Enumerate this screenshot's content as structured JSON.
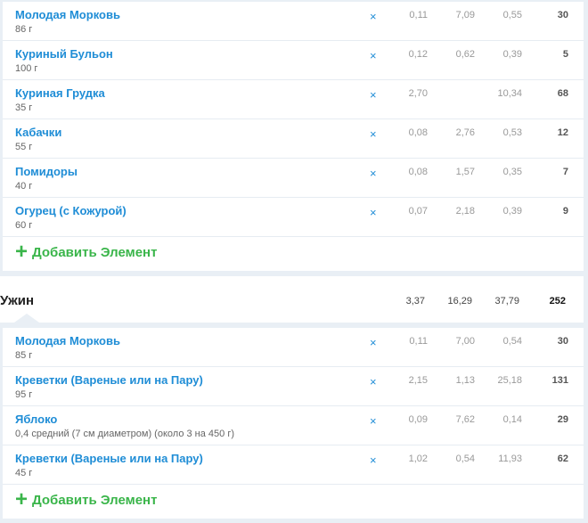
{
  "lunch": {
    "items": [
      {
        "name": "Молодая Морковь",
        "amount": "86 г",
        "fat": "0,11",
        "carbs": "7,09",
        "protein": "0,55",
        "cal": "30"
      },
      {
        "name": "Куриный Бульон",
        "amount": "100 г",
        "fat": "0,12",
        "carbs": "0,62",
        "protein": "0,39",
        "cal": "5"
      },
      {
        "name": "Куриная Грудка",
        "amount": "35 г",
        "fat": "2,70",
        "carbs": "",
        "protein": "10,34",
        "cal": "68"
      },
      {
        "name": "Кабачки",
        "amount": "55 г",
        "fat": "0,08",
        "carbs": "2,76",
        "protein": "0,53",
        "cal": "12"
      },
      {
        "name": "Помидоры",
        "amount": "40 г",
        "fat": "0,08",
        "carbs": "1,57",
        "protein": "0,35",
        "cal": "7"
      },
      {
        "name": "Огурец (с Кожурой)",
        "amount": "60 г",
        "fat": "0,07",
        "carbs": "2,18",
        "protein": "0,39",
        "cal": "9"
      }
    ],
    "add_label": "Добавить Элемент"
  },
  "dinner": {
    "title": "Ужин",
    "fat": "3,37",
    "carbs": "16,29",
    "protein": "37,79",
    "cal": "252",
    "items": [
      {
        "name": "Молодая Морковь",
        "amount": "85 г",
        "fat": "0,11",
        "carbs": "7,00",
        "protein": "0,54",
        "cal": "30"
      },
      {
        "name": "Креветки (Вареные или на Пару)",
        "amount": "95 г",
        "fat": "2,15",
        "carbs": "1,13",
        "protein": "25,18",
        "cal": "131"
      },
      {
        "name": "Яблоко",
        "amount": "0,4 средний (7 см диаметром) (около 3 на 450 г)",
        "fat": "0,09",
        "carbs": "7,62",
        "protein": "0,14",
        "cal": "29"
      },
      {
        "name": "Креветки (Вареные или на Пару)",
        "amount": "45 г",
        "fat": "1,02",
        "carbs": "0,54",
        "protein": "11,93",
        "cal": "62"
      }
    ],
    "add_label": "Добавить Элемент"
  },
  "delete_glyph": "×",
  "plus_glyph": "+",
  "colors": {
    "link": "#1f8dd6",
    "add": "#3ab54a",
    "background": "#e9eff5"
  }
}
